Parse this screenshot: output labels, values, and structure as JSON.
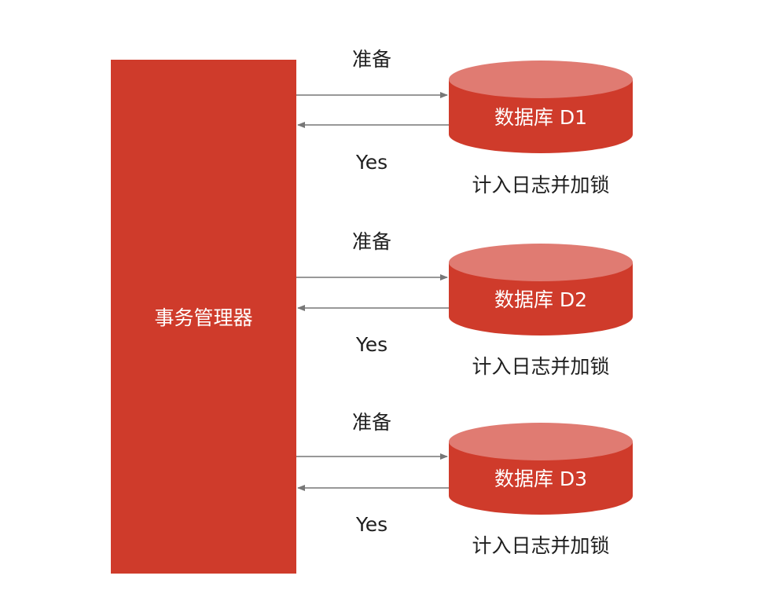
{
  "colors": {
    "primary_red": "#cf3b2b",
    "cylinder_top": "#e07b72",
    "arrow": "#777777",
    "text": "#1f1f1f",
    "text_on_red": "#ffffff"
  },
  "manager": {
    "label": "事务管理器"
  },
  "databases": [
    {
      "name": "数据库 D1",
      "request_label": "准备",
      "response_label": "Yes",
      "note": "计入日志并加锁"
    },
    {
      "name": "数据库 D2",
      "request_label": "准备",
      "response_label": "Yes",
      "note": "计入日志并加锁"
    },
    {
      "name": "数据库 D3",
      "request_label": "准备",
      "response_label": "Yes",
      "note": "计入日志并加锁"
    }
  ]
}
